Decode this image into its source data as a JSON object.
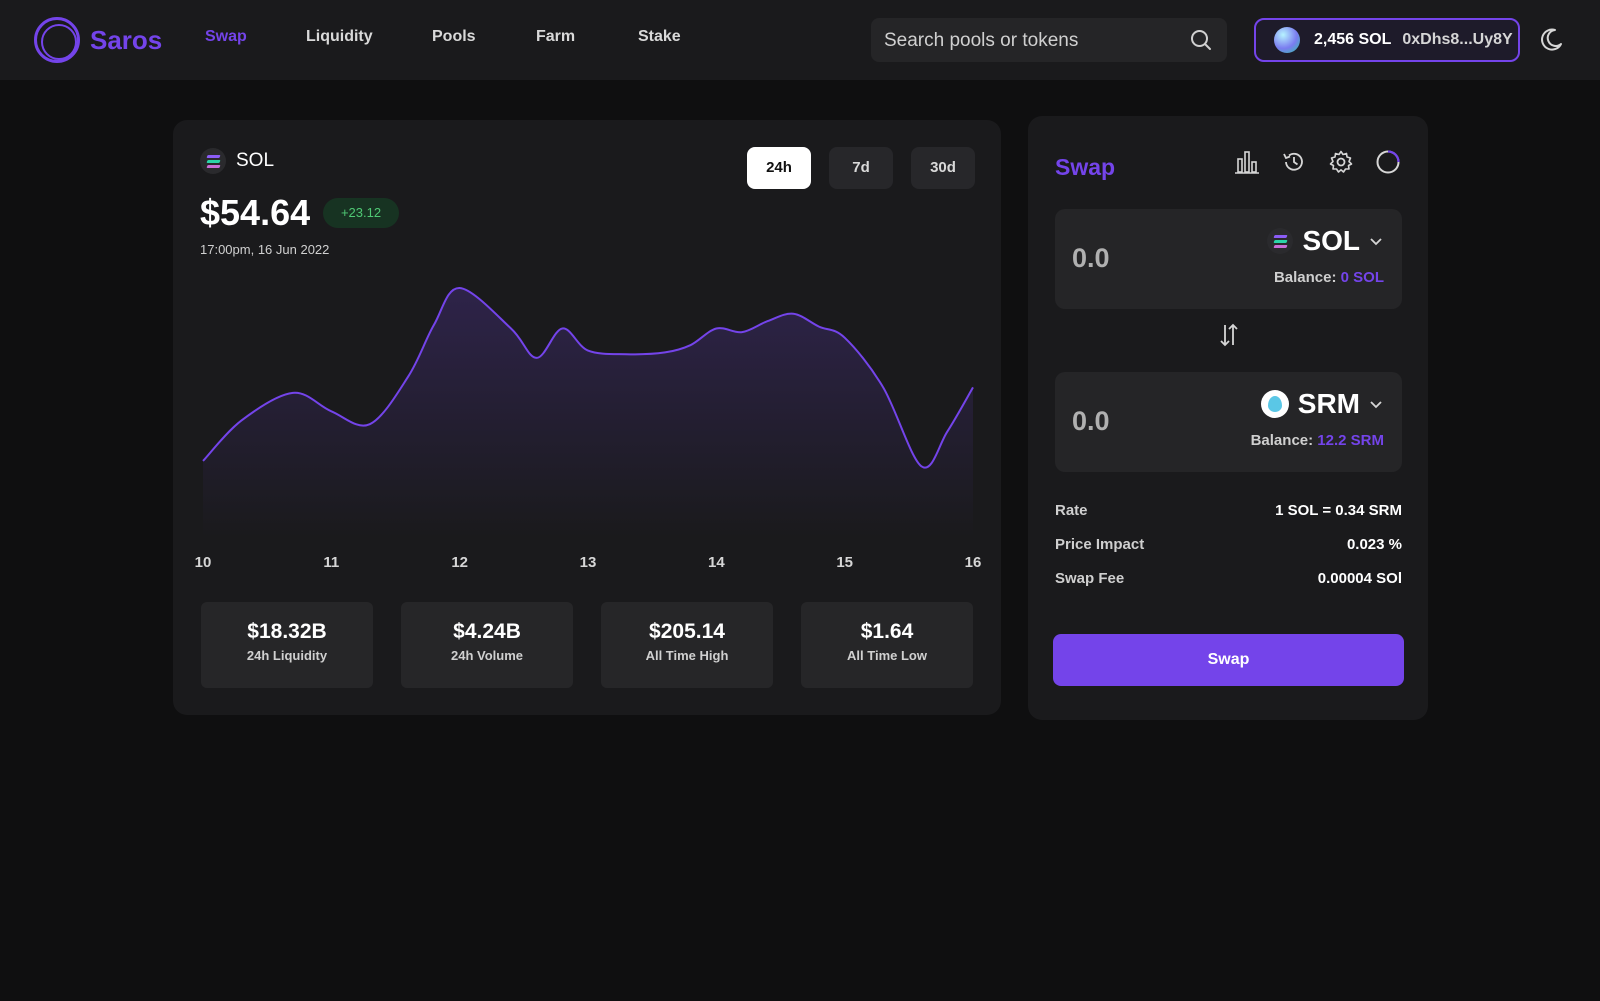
{
  "app": {
    "name": "Saros"
  },
  "nav": {
    "items": [
      "Swap",
      "Liquidity",
      "Pools",
      "Farm",
      "Stake"
    ],
    "active": "Swap"
  },
  "search": {
    "placeholder": "Search pools or tokens"
  },
  "wallet": {
    "balance": "2,456 SOL",
    "address": "0xDhs8...Uy8Y"
  },
  "token_panel": {
    "token": "SOL",
    "price": "$54.64",
    "change": "+23.12",
    "timestamp": "17:00pm, 16 Jun 2022",
    "ranges": [
      "24h",
      "7d",
      "30d"
    ],
    "active_range": "24h",
    "stats": [
      {
        "value": "$18.32B",
        "label": "24h Liquidity"
      },
      {
        "value": "$4.24B",
        "label": "24h Volume"
      },
      {
        "value": "$205.14",
        "label": "All Time High"
      },
      {
        "value": "$1.64",
        "label": "All Time Low"
      }
    ]
  },
  "chart_data": {
    "type": "area",
    "x_ticks": [
      "10",
      "11",
      "12",
      "13",
      "14",
      "15",
      "16"
    ],
    "x": [
      10.0,
      10.3,
      10.7,
      11.0,
      11.3,
      11.6,
      11.8,
      12.0,
      12.4,
      12.6,
      12.8,
      13.0,
      13.3,
      13.6,
      13.8,
      14.0,
      14.2,
      14.4,
      14.6,
      14.8,
      15.0,
      15.3,
      15.6,
      15.8,
      16.0
    ],
    "y": [
      0.06,
      0.28,
      0.43,
      0.33,
      0.26,
      0.52,
      0.8,
      1.0,
      0.78,
      0.62,
      0.78,
      0.66,
      0.64,
      0.65,
      0.69,
      0.78,
      0.76,
      0.82,
      0.86,
      0.79,
      0.73,
      0.46,
      0.03,
      0.22,
      0.46
    ],
    "line_color": "#7444ea",
    "grid": false
  },
  "swap": {
    "title": "Swap",
    "from": {
      "amount": "0.0",
      "token": "SOL",
      "balance_label": "Balance:",
      "balance_value": "0 SOL"
    },
    "to": {
      "amount": "0.0",
      "token": "SRM",
      "balance_label": "Balance:",
      "balance_value": "12.2 SRM"
    },
    "info": [
      {
        "label": "Rate",
        "value": "1 SOL = 0.34 SRM"
      },
      {
        "label": "Price Impact",
        "value": "0.023 %"
      },
      {
        "label": "Swap Fee",
        "value": "0.00004 SOl"
      }
    ],
    "button": "Swap"
  },
  "colors": {
    "accent": "#7444ea",
    "background": "#0f0f10",
    "card": "#1a1a1c",
    "positive": "#4fc874"
  },
  "icons": {
    "search": "search-icon",
    "theme": "moon-icon",
    "stats": "bar-chart-icon",
    "history": "history-icon",
    "settings": "gear-icon",
    "refresh": "refresh-icon",
    "swap_direction": "swap-arrows-icon"
  }
}
